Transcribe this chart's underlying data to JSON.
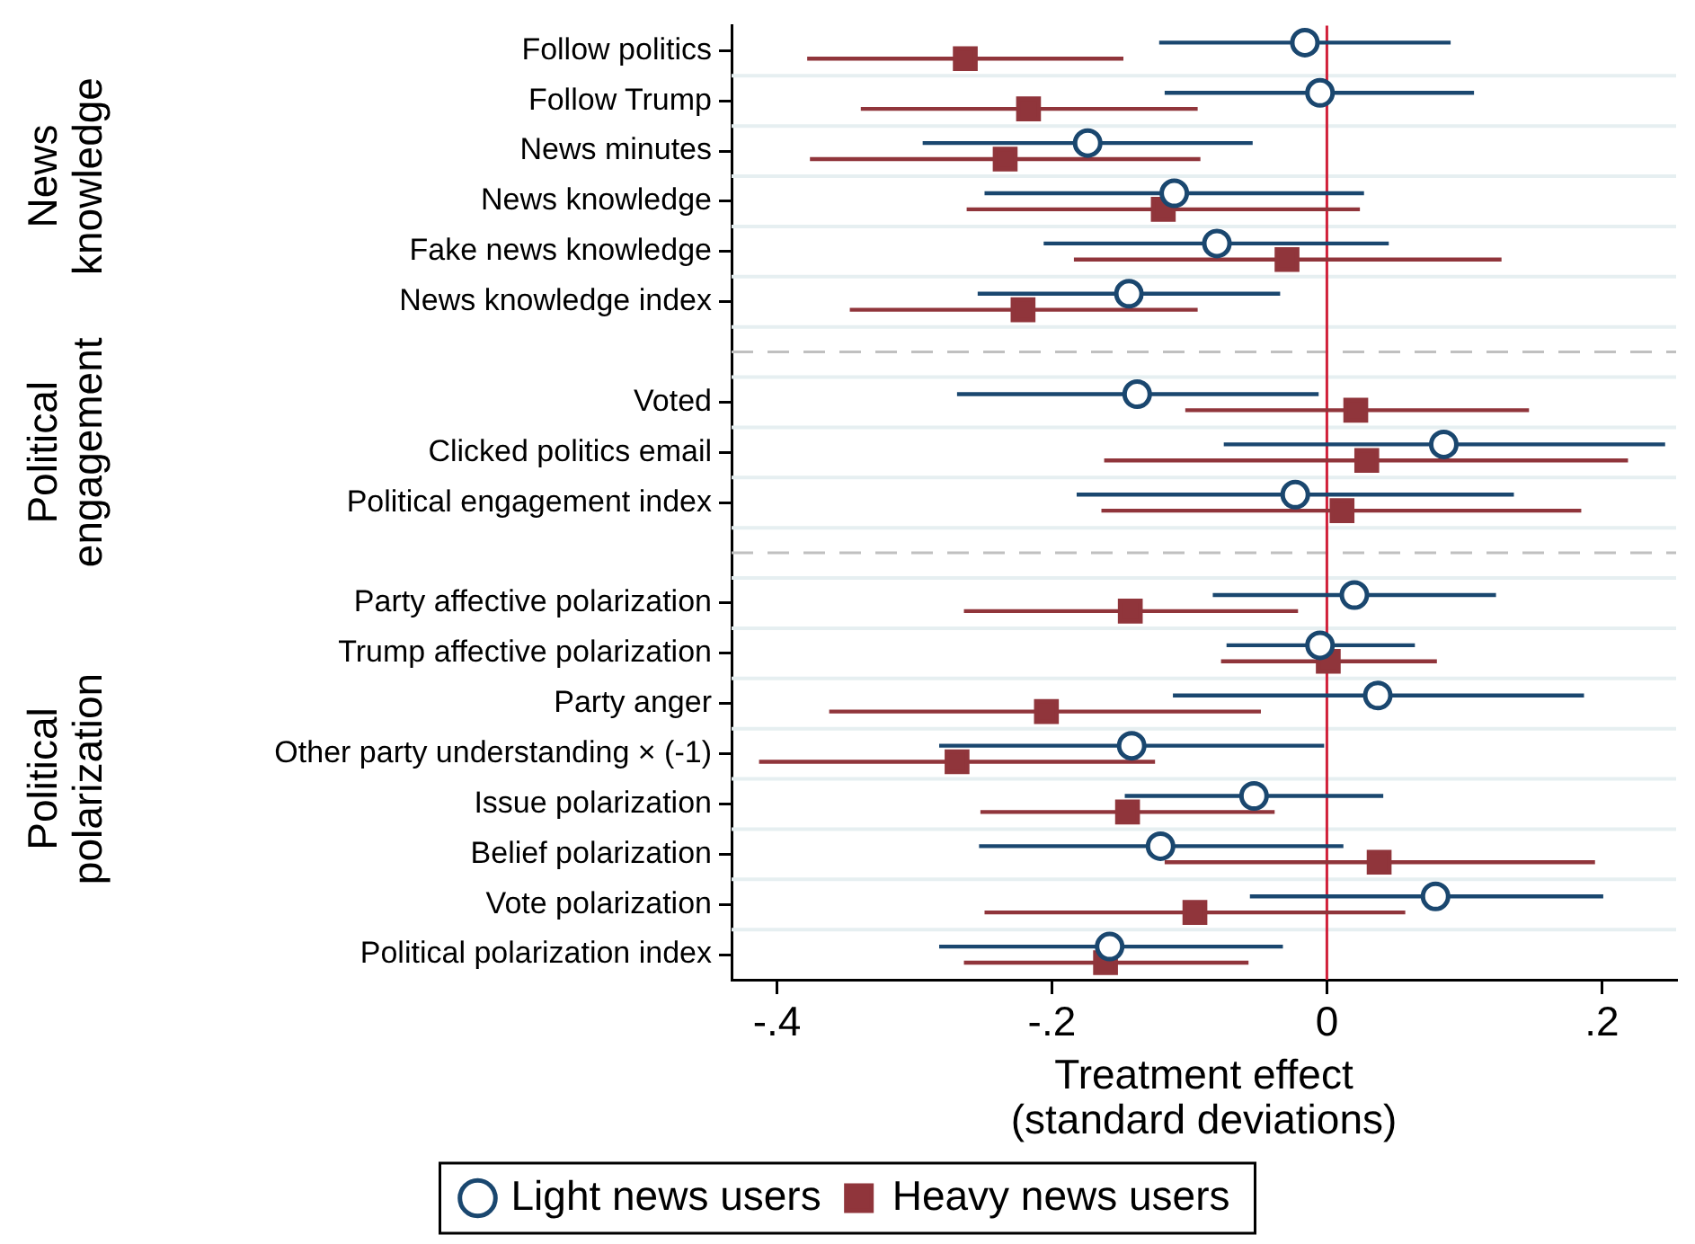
{
  "chart_data": {
    "type": "scatter",
    "orientation": "horizontal",
    "xlabel": "Treatment effect (standard deviations)",
    "annotations": [
      "News knowledge",
      "Political engagement",
      "Political polarization"
    ],
    "categories": [
      "Follow politics",
      "Follow Trump",
      "News minutes",
      "News knowledge",
      "Fake news knowledge",
      "News knowledge index",
      null,
      "Voted",
      "Clicked politics email",
      "Political engagement index",
      null,
      "Party affective polarization",
      "Trump affective polarization",
      "Party anger",
      "Other party understanding × (-1)",
      "Issue polarization",
      "Belief polarization",
      "Vote polarization",
      "Political polarization index"
    ],
    "series": [
      {
        "name": "Light news users",
        "color": "#1a476f",
        "marker": "circle",
        "values": [
          -0.016,
          -0.005,
          -0.174,
          -0.111,
          -0.08,
          -0.144,
          null,
          -0.138,
          0.085,
          -0.023,
          null,
          0.02,
          -0.005,
          0.037,
          -0.142,
          -0.053,
          -0.121,
          0.079,
          -0.158
        ],
        "errors": [
          [
            -0.122,
            0.09
          ],
          [
            -0.118,
            0.107
          ],
          [
            -0.294,
            -0.054
          ],
          [
            -0.249,
            0.027
          ],
          [
            -0.206,
            0.045
          ],
          [
            -0.254,
            -0.034
          ],
          null,
          [
            -0.269,
            -0.006
          ],
          [
            -0.075,
            0.246
          ],
          [
            -0.182,
            0.136
          ],
          null,
          [
            -0.083,
            0.123
          ],
          [
            -0.073,
            0.064
          ],
          [
            -0.112,
            0.187
          ],
          [
            -0.282,
            -0.002
          ],
          [
            -0.147,
            0.041
          ],
          [
            -0.253,
            0.012
          ],
          [
            -0.056,
            0.201
          ],
          [
            -0.282,
            -0.032
          ]
        ]
      },
      {
        "name": "Heavy news users",
        "color": "#90353b",
        "marker": "square",
        "values": [
          -0.263,
          -0.217,
          -0.234,
          -0.119,
          -0.029,
          -0.221,
          null,
          0.021,
          0.029,
          0.011,
          null,
          -0.143,
          0.001,
          -0.204,
          -0.269,
          -0.145,
          0.038,
          -0.096,
          -0.161
        ],
        "errors": [
          [
            -0.378,
            -0.148
          ],
          [
            -0.339,
            -0.094
          ],
          [
            -0.376,
            -0.092
          ],
          [
            -0.262,
            0.024
          ],
          [
            -0.184,
            0.127
          ],
          [
            -0.347,
            -0.094
          ],
          null,
          [
            -0.103,
            0.147
          ],
          [
            -0.162,
            0.219
          ],
          [
            -0.164,
            0.185
          ],
          null,
          [
            -0.264,
            -0.021
          ],
          [
            -0.077,
            0.08
          ],
          [
            -0.362,
            -0.048
          ],
          [
            -0.413,
            -0.125
          ],
          [
            -0.252,
            -0.038
          ],
          [
            -0.118,
            0.195
          ],
          [
            -0.249,
            0.057
          ],
          [
            -0.264,
            -0.057
          ]
        ]
      }
    ],
    "xlim": [
      -0.433,
      0.254
    ],
    "xticks": [
      {
        "value": -0.4,
        "label": "-.4"
      },
      {
        "value": -0.2,
        "label": "-.2"
      },
      0,
      {
        "value": 0.2,
        "label": ".2"
      }
    ],
    "ref_lines": [
      {
        "axis": "x",
        "value": 0,
        "color": "#d1203a"
      }
    ],
    "grid": "y",
    "legend": "bottom"
  }
}
